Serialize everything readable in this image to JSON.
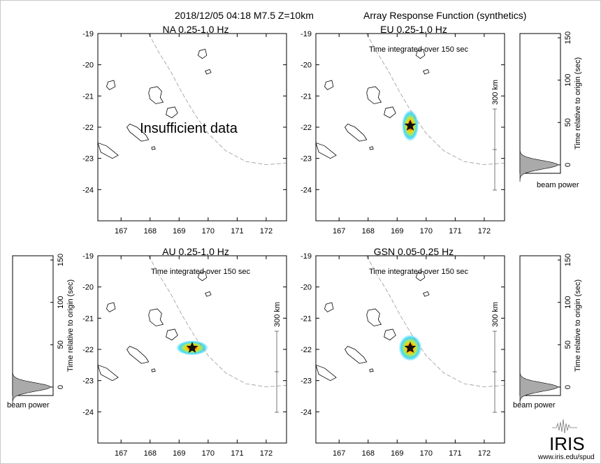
{
  "title_left": "2018/12/05 04:18  M7.5  Z=10km",
  "title_right": "Array Response Function (synthetics)",
  "logo_text": "IRIS",
  "logo_url": "www.iris.edu/spud",
  "chart_data": [
    {
      "type": "heatmap",
      "title": "NA  0.25-1.0 Hz",
      "xlim": [
        166.2,
        172.7
      ],
      "ylim": [
        -25,
        -19
      ],
      "xticks": [
        167,
        168,
        169,
        170,
        171,
        172
      ],
      "yticks": [
        -19,
        -20,
        -21,
        -22,
        -23,
        -24
      ],
      "note": "",
      "overlay_text": "Insufficient data",
      "has_power": false,
      "scale_label": ""
    },
    {
      "type": "heatmap",
      "title": "EU  0.25-1.0 Hz",
      "xlim": [
        166.2,
        172.7
      ],
      "ylim": [
        -25,
        -19
      ],
      "xticks": [
        167,
        168,
        169,
        170,
        171,
        172
      ],
      "yticks": [
        -19,
        -20,
        -21,
        -22,
        -23,
        -24
      ],
      "note": "Time integrated over 150 sec",
      "overlay_text": "",
      "has_power": true,
      "epicenter": {
        "lon": 169.45,
        "lat": -21.95
      },
      "beam": {
        "sx": 0.55,
        "sy": 0.95
      },
      "scale_label": "300 km"
    },
    {
      "type": "heatmap",
      "title": "AU  0.25-1.0 Hz",
      "xlim": [
        166.2,
        172.7
      ],
      "ylim": [
        -25,
        -19
      ],
      "xticks": [
        167,
        168,
        169,
        170,
        171,
        172
      ],
      "yticks": [
        -19,
        -20,
        -21,
        -22,
        -23,
        -24
      ],
      "note": "Time integrated over 150 sec",
      "overlay_text": "",
      "has_power": true,
      "epicenter": {
        "lon": 169.45,
        "lat": -21.95
      },
      "beam": {
        "sx": 1.05,
        "sy": 0.45
      },
      "scale_label": "300 km"
    },
    {
      "type": "heatmap",
      "title": "GSN  0.05-0.25 Hz",
      "xlim": [
        166.2,
        172.7
      ],
      "ylim": [
        -25,
        -19
      ],
      "xticks": [
        167,
        168,
        169,
        170,
        171,
        172
      ],
      "yticks": [
        -19,
        -20,
        -21,
        -22,
        -23,
        -24
      ],
      "note": "Time integrated over 150 sec",
      "overlay_text": "",
      "has_power": true,
      "epicenter": {
        "lon": 169.45,
        "lat": -21.95
      },
      "beam": {
        "sx": 0.75,
        "sy": 0.8
      },
      "scale_label": "300 km"
    }
  ],
  "beam_power": {
    "type": "area",
    "xlabel": "beam power",
    "ylabel": "Time relative to origin (sec)",
    "ylim": [
      -10,
      155
    ],
    "yticks": [
      0,
      50,
      100,
      150
    ],
    "peak_time": 0,
    "peak_width": 5
  }
}
